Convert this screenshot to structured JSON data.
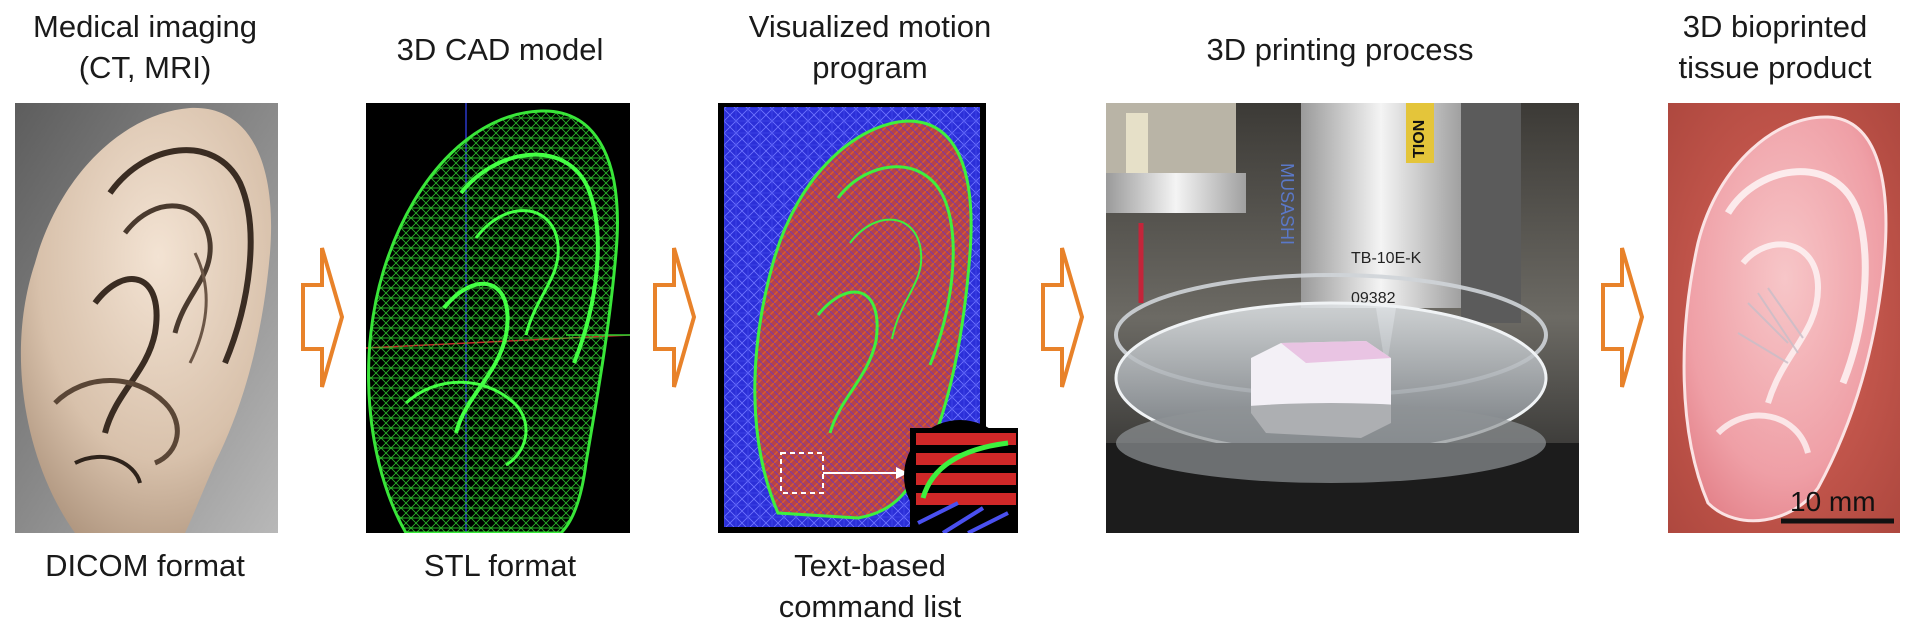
{
  "steps": [
    {
      "top_label": "Medical imaging\n(CT, MRI)",
      "bottom_label": "DICOM format"
    },
    {
      "top_label": "3D CAD model",
      "bottom_label": "STL format"
    },
    {
      "top_label": "Visualized motion\nprogram",
      "bottom_label": "Text-based\ncommand list"
    },
    {
      "top_label": "3D printing process",
      "bottom_label": ""
    },
    {
      "top_label": "3D bioprinted\ntissue product",
      "bottom_label": ""
    }
  ],
  "printer": {
    "brand": "MUSASHI",
    "model": "TB-10E-K",
    "serial": "09382",
    "caution": "TION"
  },
  "scale_bar": {
    "label": "10 mm"
  },
  "colors": {
    "arrow": "#e8822a",
    "mesh_green": "#2fd22f",
    "motion_blue": "#2b2fd8",
    "motion_red": "#c23a2a"
  }
}
